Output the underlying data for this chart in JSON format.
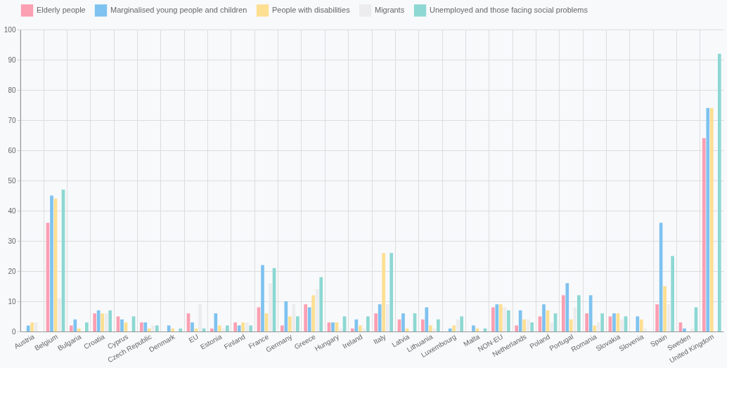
{
  "chart_data": {
    "type": "bar",
    "categories": [
      "Austria",
      "Belgium",
      "Bulgaria",
      "Croatia",
      "Cyprus",
      "Czech Republic",
      "Denmark",
      "EU",
      "Estonia",
      "Finland",
      "France",
      "Germany",
      "Greece",
      "Hungary",
      "Ireland",
      "Italy",
      "Latvia",
      "Lithuania",
      "Luxembourg",
      "Malta",
      "NON-EU",
      "Netherlands",
      "Poland",
      "Portugal",
      "Romania",
      "Slovakia",
      "Slovenia",
      "Spain",
      "Sweden",
      "United Kingdom"
    ],
    "series": [
      {
        "name": "Elderly people",
        "color": "#fb9fb2",
        "values": [
          0,
          36,
          2,
          6,
          5,
          3,
          0,
          6,
          1,
          3,
          8,
          2,
          9,
          3,
          1,
          6,
          4,
          4,
          0,
          0,
          8,
          2,
          5,
          12,
          6,
          5,
          0,
          9,
          3,
          64
        ]
      },
      {
        "name": "Marginalised young people and children",
        "color": "#7ec2ef",
        "values": [
          2,
          45,
          4,
          7,
          4,
          3,
          2,
          3,
          6,
          2,
          22,
          10,
          8,
          3,
          4,
          9,
          6,
          8,
          1,
          2,
          9,
          7,
          9,
          16,
          12,
          6,
          5,
          36,
          1,
          74
        ]
      },
      {
        "name": "People with disabilities",
        "color": "#fddf91",
        "values": [
          3,
          44,
          1,
          6,
          3,
          1,
          1,
          1,
          2,
          3,
          6,
          5,
          12,
          3,
          2,
          26,
          1,
          2,
          2,
          1,
          9,
          4,
          7,
          4,
          2,
          6,
          4,
          15,
          0,
          74
        ]
      },
      {
        "name": "Migrants",
        "color": "#ececee",
        "values": [
          3,
          11,
          0,
          6,
          0,
          2,
          0,
          9,
          1,
          3,
          16,
          9,
          14,
          1,
          1,
          9,
          0,
          1,
          4,
          0,
          8,
          4,
          3,
          8,
          3,
          4,
          1,
          9,
          1,
          null
        ]
      },
      {
        "name": "Unemployed and those facing social problems",
        "color": "#8dd8d3",
        "values": [
          0,
          47,
          3,
          7,
          5,
          2,
          1,
          1,
          2,
          2,
          21,
          5,
          18,
          5,
          5,
          26,
          6,
          4,
          5,
          1,
          7,
          3,
          6,
          12,
          6,
          5,
          0,
          25,
          8,
          92
        ]
      }
    ],
    "ylim": [
      0,
      100
    ],
    "yticks": [
      0,
      10,
      20,
      30,
      40,
      50,
      60,
      70,
      80,
      90,
      100
    ],
    "grid": true,
    "legend": "top"
  }
}
